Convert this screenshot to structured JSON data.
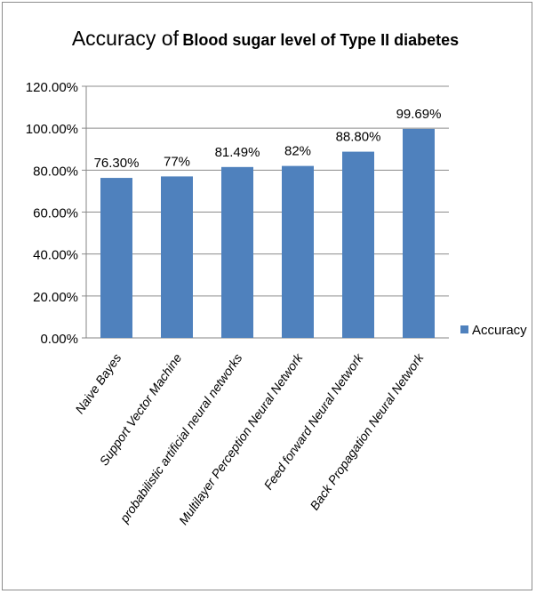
{
  "chart_data": {
    "type": "bar",
    "title_part1": "Accuracy of",
    "title_part2": "Blood sugar level of Type II diabetes",
    "categories": [
      "Naive Bayes",
      "Support Vector Machine",
      "probabilistic artificial neural networks",
      "Multilayer Perception Neural Network",
      "Feed forward Neural Network",
      "Back Propagation Neural Network"
    ],
    "series": [
      {
        "name": "Accuracy",
        "values": [
          76.3,
          77,
          81.49,
          82,
          88.8,
          99.69
        ],
        "data_labels": [
          "76.30%",
          "77%",
          "81.49%",
          "82%",
          "88.80%",
          "99.69%"
        ],
        "color": "#4f81bd"
      }
    ],
    "y_ticks": [
      {
        "value": 0,
        "label": "0.00%"
      },
      {
        "value": 20,
        "label": "20.00%"
      },
      {
        "value": 40,
        "label": "40.00%"
      },
      {
        "value": 60,
        "label": "60.00%"
      },
      {
        "value": 80,
        "label": "80.00%"
      },
      {
        "value": 100,
        "label": "100.00%"
      },
      {
        "value": 120,
        "label": "120.00%"
      }
    ],
    "ylim": [
      0,
      120
    ],
    "grid": true,
    "legend_position": "right"
  }
}
